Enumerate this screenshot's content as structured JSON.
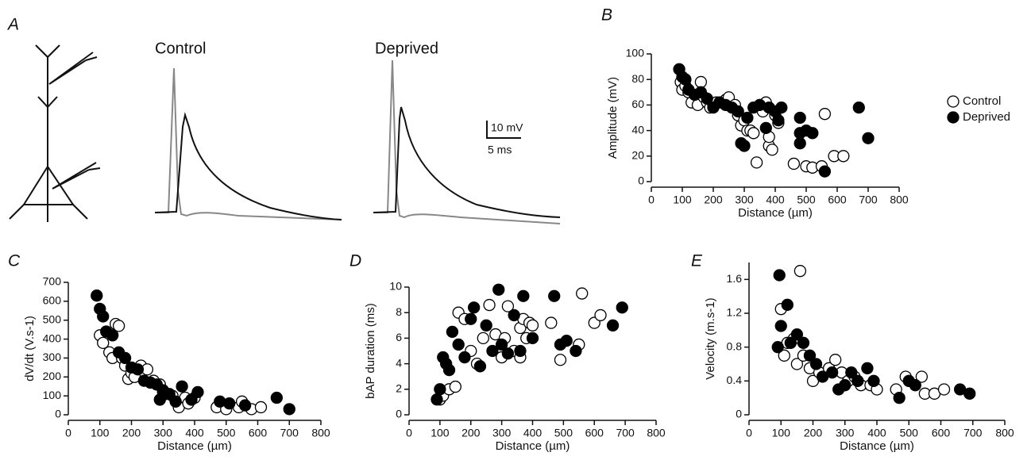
{
  "panel_a": {
    "label": "A",
    "control_title": "Control",
    "deprived_title": "Deprived",
    "scale_voltage": "10 mV",
    "scale_time": "5 ms"
  },
  "chart_data": [
    {
      "type": "scatter",
      "panel": "B",
      "xlabel": "Distance (µm)",
      "ylabel": "Amplitude (mV)",
      "xlim": [
        0,
        800
      ],
      "xticks": [
        0,
        100,
        200,
        300,
        400,
        500,
        600,
        700,
        800
      ],
      "ylim": [
        0,
        100
      ],
      "yticks": [
        0,
        20,
        40,
        60,
        80,
        100
      ],
      "legend": "right",
      "series": [
        {
          "name": "Control",
          "color": "#ffffff",
          "edgecolor": "#000000",
          "x": [
            95,
            100,
            110,
            120,
            130,
            150,
            160,
            170,
            180,
            190,
            200,
            210,
            240,
            250,
            270,
            280,
            290,
            300,
            310,
            320,
            330,
            340,
            350,
            360,
            370,
            380,
            380,
            390,
            400,
            410,
            460,
            500,
            520,
            550,
            560,
            590,
            620
          ],
          "values": [
            78,
            72,
            75,
            70,
            62,
            60,
            78,
            66,
            62,
            58,
            60,
            62,
            64,
            66,
            60,
            52,
            44,
            48,
            40,
            40,
            38,
            15,
            60,
            55,
            62,
            28,
            35,
            25,
            52,
            46,
            14,
            12,
            11,
            12,
            53,
            20,
            20
          ]
        },
        {
          "name": "Deprived",
          "color": "#000000",
          "edgecolor": "#000000",
          "x": [
            90,
            100,
            110,
            120,
            140,
            160,
            180,
            200,
            220,
            240,
            260,
            280,
            290,
            300,
            310,
            330,
            350,
            370,
            380,
            400,
            410,
            420,
            480,
            480,
            480,
            500,
            520,
            560,
            670,
            700
          ],
          "values": [
            88,
            82,
            80,
            72,
            68,
            70,
            65,
            58,
            62,
            60,
            58,
            55,
            30,
            28,
            50,
            58,
            60,
            42,
            58,
            55,
            48,
            58,
            50,
            38,
            30,
            40,
            38,
            8,
            58,
            34
          ]
        }
      ]
    },
    {
      "type": "scatter",
      "panel": "C",
      "xlabel": "Distance (µm)",
      "ylabel": "dV/dt (V.s-1)",
      "xlim": [
        0,
        800
      ],
      "xticks": [
        0,
        100,
        200,
        300,
        400,
        500,
        600,
        700,
        800
      ],
      "ylim": [
        0,
        700
      ],
      "yticks": [
        0,
        100,
        200,
        300,
        400,
        500,
        600,
        700
      ],
      "series": [
        {
          "color": "#ffffff",
          "edgecolor": "#000000",
          "x": [
            100,
            110,
            130,
            140,
            150,
            160,
            170,
            180,
            190,
            200,
            210,
            230,
            250,
            270,
            290,
            300,
            310,
            330,
            350,
            370,
            380,
            400,
            470,
            500,
            540,
            550,
            580,
            610
          ],
          "values": [
            420,
            380,
            330,
            300,
            480,
            470,
            300,
            260,
            190,
            220,
            200,
            260,
            240,
            180,
            160,
            120,
            110,
            100,
            40,
            90,
            60,
            90,
            40,
            30,
            40,
            70,
            30,
            40
          ]
        },
        {
          "color": "#000000",
          "edgecolor": "#000000",
          "x": [
            90,
            100,
            110,
            120,
            140,
            160,
            180,
            200,
            220,
            240,
            260,
            280,
            290,
            300,
            320,
            340,
            360,
            390,
            410,
            480,
            510,
            560,
            660,
            700
          ],
          "values": [
            630,
            560,
            520,
            440,
            420,
            330,
            300,
            250,
            240,
            180,
            170,
            160,
            80,
            130,
            110,
            70,
            150,
            80,
            120,
            70,
            60,
            50,
            90,
            30
          ]
        }
      ]
    },
    {
      "type": "scatter",
      "panel": "D",
      "xlabel": "Distance (µm)",
      "ylabel": "bAP duration (ms)",
      "xlim": [
        0,
        800
      ],
      "xticks": [
        0,
        100,
        200,
        300,
        400,
        500,
        600,
        700,
        800
      ],
      "ylim": [
        0,
        10
      ],
      "yticks": [
        0,
        2,
        4,
        6,
        8,
        10
      ],
      "series": [
        {
          "color": "#ffffff",
          "edgecolor": "#000000",
          "x": [
            100,
            110,
            130,
            150,
            160,
            180,
            200,
            220,
            240,
            260,
            280,
            300,
            310,
            320,
            340,
            360,
            360,
            370,
            380,
            390,
            400,
            460,
            490,
            550,
            560,
            600,
            620
          ],
          "values": [
            1.2,
            1.5,
            2,
            2.2,
            8,
            7.5,
            5,
            4,
            6,
            8.6,
            6.3,
            4.5,
            6,
            8.5,
            5,
            4.5,
            6.8,
            7.5,
            6,
            7.2,
            7,
            7.2,
            4.3,
            5.5,
            9.5,
            7.2,
            7.8
          ]
        },
        {
          "color": "#000000",
          "edgecolor": "#000000",
          "x": [
            90,
            100,
            110,
            120,
            130,
            140,
            160,
            180,
            200,
            210,
            230,
            250,
            270,
            290,
            300,
            320,
            340,
            360,
            370,
            400,
            470,
            490,
            510,
            540,
            660,
            690
          ],
          "values": [
            1.2,
            2,
            4.5,
            4,
            3.5,
            6.5,
            5.5,
            4.5,
            7.5,
            8.4,
            3.8,
            7,
            5,
            9.8,
            5.5,
            4.8,
            7.8,
            5,
            9.3,
            6,
            9.3,
            5.5,
            5.8,
            5,
            7,
            8.4
          ]
        }
      ]
    },
    {
      "type": "scatter",
      "panel": "E",
      "xlabel": "Distance (µm)",
      "ylabel": "Velocity (m.s-1)",
      "xlim": [
        0,
        800
      ],
      "xticks": [
        0,
        100,
        200,
        300,
        400,
        500,
        600,
        700,
        800
      ],
      "ylim": [
        0,
        1.8
      ],
      "yticks": [
        0,
        0.4,
        0.8,
        1.2,
        1.6
      ],
      "series": [
        {
          "color": "#ffffff",
          "edgecolor": "#000000",
          "x": [
            100,
            110,
            120,
            140,
            150,
            160,
            170,
            190,
            200,
            220,
            250,
            270,
            290,
            310,
            330,
            350,
            380,
            400,
            460,
            490,
            540,
            550,
            580,
            610
          ],
          "values": [
            1.25,
            0.7,
            0.85,
            0.9,
            0.6,
            1.7,
            0.7,
            0.55,
            0.4,
            0.5,
            0.55,
            0.65,
            0.5,
            0.4,
            0.45,
            0.35,
            0.35,
            0.3,
            0.3,
            0.45,
            0.45,
            0.25,
            0.25,
            0.3
          ]
        },
        {
          "color": "#000000",
          "edgecolor": "#000000",
          "x": [
            90,
            95,
            100,
            120,
            130,
            150,
            170,
            190,
            210,
            230,
            260,
            280,
            300,
            320,
            340,
            370,
            390,
            470,
            500,
            520,
            660,
            690
          ],
          "values": [
            0.8,
            1.65,
            1.05,
            1.3,
            0.85,
            0.95,
            0.85,
            0.7,
            0.6,
            0.45,
            0.5,
            0.3,
            0.35,
            0.5,
            0.4,
            0.55,
            0.4,
            0.2,
            0.4,
            0.35,
            0.3,
            0.25
          ]
        }
      ]
    }
  ]
}
